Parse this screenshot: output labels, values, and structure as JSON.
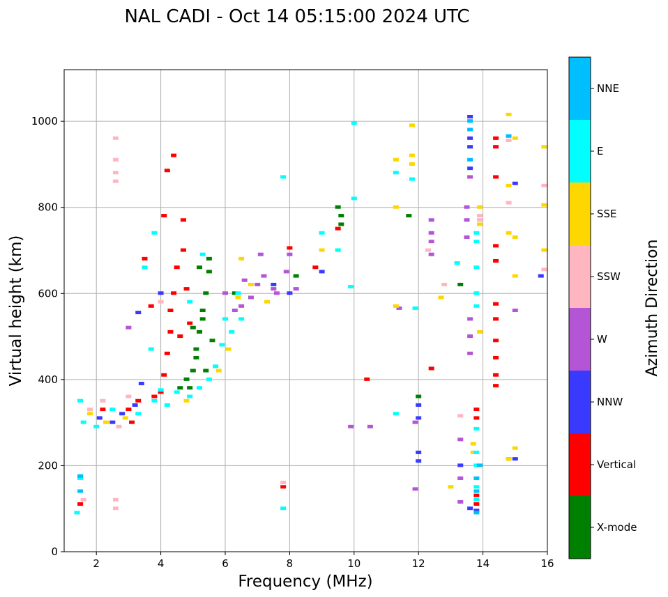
{
  "chart_data": {
    "type": "scatter",
    "title": "NAL CADI - Oct 14 05:15:00 2024 UTC",
    "xlabel": "Frequency (MHz)",
    "ylabel": "Virtual height (km)",
    "xlim": [
      1,
      16
    ],
    "ylim": [
      0,
      1120
    ],
    "xticks": [
      2,
      4,
      6,
      8,
      10,
      12,
      14,
      16
    ],
    "yticks": [
      0,
      200,
      400,
      600,
      800,
      1000
    ],
    "grid": true,
    "colorbar": {
      "label": "Azimuth Direction",
      "categories": [
        {
          "name": "X-mode",
          "color": "#008000"
        },
        {
          "name": "Vertical",
          "color": "#ff0000"
        },
        {
          "name": "NNW",
          "color": "#3a3aff"
        },
        {
          "name": "W",
          "color": "#b455d6"
        },
        {
          "name": "SSW",
          "color": "#ffb6c1"
        },
        {
          "name": "SSE",
          "color": "#ffd700"
        },
        {
          "name": "E",
          "color": "#00ffff"
        },
        {
          "name": "NNE",
          "color": "#00bfff"
        }
      ]
    },
    "series": [
      {
        "name": "X-mode",
        "points": [
          [
            4.9,
            380
          ],
          [
            5.0,
            420
          ],
          [
            5.1,
            470
          ],
          [
            5.2,
            510
          ],
          [
            5.3,
            560
          ],
          [
            5.4,
            600
          ],
          [
            5.2,
            660
          ],
          [
            5.5,
            650
          ],
          [
            5.3,
            540
          ],
          [
            5.1,
            450
          ],
          [
            4.8,
            400
          ],
          [
            5.6,
            490
          ],
          [
            5.4,
            420
          ],
          [
            9.6,
            780
          ],
          [
            9.6,
            760
          ],
          [
            9.5,
            800
          ],
          [
            8.2,
            640
          ],
          [
            12.0,
            360
          ],
          [
            13.3,
            620
          ],
          [
            14.8,
            215
          ],
          [
            11.7,
            780
          ],
          [
            6.3,
            600
          ],
          [
            5.5,
            680
          ],
          [
            5.0,
            520
          ],
          [
            4.6,
            380
          ]
        ]
      },
      {
        "name": "Vertical",
        "points": [
          [
            4.0,
            370
          ],
          [
            4.1,
            410
          ],
          [
            4.2,
            460
          ],
          [
            4.3,
            510
          ],
          [
            4.3,
            560
          ],
          [
            4.4,
            600
          ],
          [
            4.5,
            660
          ],
          [
            4.7,
            700
          ],
          [
            4.7,
            770
          ],
          [
            4.1,
            780
          ],
          [
            4.2,
            885
          ],
          [
            4.4,
            920
          ],
          [
            3.7,
            570
          ],
          [
            3.5,
            680
          ],
          [
            3.1,
            300
          ],
          [
            3.3,
            350
          ],
          [
            3.8,
            360
          ],
          [
            3.0,
            330
          ],
          [
            2.2,
            330
          ],
          [
            4.6,
            500
          ],
          [
            4.8,
            610
          ],
          [
            4.9,
            530
          ],
          [
            10.4,
            400
          ],
          [
            12.4,
            425
          ],
          [
            14.4,
            960
          ],
          [
            14.4,
            940
          ],
          [
            14.4,
            870
          ],
          [
            14.4,
            710
          ],
          [
            14.4,
            675
          ],
          [
            14.4,
            575
          ],
          [
            14.4,
            540
          ],
          [
            14.4,
            490
          ],
          [
            14.4,
            450
          ],
          [
            14.4,
            410
          ],
          [
            14.4,
            385
          ],
          [
            13.8,
            310
          ],
          [
            13.8,
            330
          ],
          [
            13.8,
            110
          ],
          [
            13.8,
            130
          ],
          [
            1.5,
            110
          ],
          [
            7.8,
            150
          ],
          [
            9.5,
            750
          ],
          [
            8.8,
            660
          ],
          [
            8.0,
            705
          ]
        ]
      },
      {
        "name": "NNW",
        "points": [
          [
            2.5,
            300
          ],
          [
            2.8,
            320
          ],
          [
            3.2,
            340
          ],
          [
            3.4,
            390
          ],
          [
            4.0,
            600
          ],
          [
            3.3,
            555
          ],
          [
            12.0,
            340
          ],
          [
            12.0,
            310
          ],
          [
            12.0,
            230
          ],
          [
            12.0,
            210
          ],
          [
            13.6,
            1010
          ],
          [
            13.6,
            960
          ],
          [
            13.6,
            940
          ],
          [
            13.6,
            890
          ],
          [
            13.3,
            200
          ],
          [
            13.6,
            100
          ],
          [
            13.8,
            95
          ],
          [
            15.0,
            855
          ],
          [
            15.8,
            640
          ],
          [
            15.0,
            215
          ],
          [
            2.1,
            310
          ],
          [
            7.5,
            620
          ],
          [
            8.0,
            600
          ],
          [
            9.0,
            650
          ]
        ]
      },
      {
        "name": "W",
        "points": [
          [
            6.5,
            570
          ],
          [
            6.8,
            590
          ],
          [
            7.0,
            620
          ],
          [
            7.2,
            640
          ],
          [
            7.5,
            610
          ],
          [
            7.6,
            600
          ],
          [
            7.9,
            650
          ],
          [
            8.0,
            690
          ],
          [
            8.2,
            610
          ],
          [
            6.3,
            560
          ],
          [
            6.0,
            600
          ],
          [
            7.1,
            690
          ],
          [
            6.6,
            630
          ],
          [
            12.4,
            770
          ],
          [
            12.4,
            740
          ],
          [
            12.4,
            720
          ],
          [
            12.4,
            690
          ],
          [
            13.5,
            800
          ],
          [
            13.5,
            770
          ],
          [
            13.5,
            730
          ],
          [
            13.6,
            870
          ],
          [
            13.6,
            540
          ],
          [
            13.6,
            500
          ],
          [
            13.6,
            460
          ],
          [
            13.3,
            260
          ],
          [
            13.3,
            170
          ],
          [
            13.3,
            115
          ],
          [
            15.0,
            560
          ],
          [
            11.9,
            300
          ],
          [
            11.9,
            145
          ],
          [
            9.9,
            290
          ],
          [
            10.5,
            290
          ],
          [
            11.4,
            565
          ],
          [
            3.0,
            520
          ]
        ]
      },
      {
        "name": "SSW",
        "points": [
          [
            2.6,
            960
          ],
          [
            2.6,
            910
          ],
          [
            2.6,
            880
          ],
          [
            2.6,
            860
          ],
          [
            2.6,
            120
          ],
          [
            2.6,
            100
          ],
          [
            1.8,
            330
          ],
          [
            2.2,
            350
          ],
          [
            2.7,
            290
          ],
          [
            3.0,
            360
          ],
          [
            4.0,
            580
          ],
          [
            13.9,
            780
          ],
          [
            13.9,
            770
          ],
          [
            14.8,
            955
          ],
          [
            14.8,
            810
          ],
          [
            15.9,
            850
          ],
          [
            15.9,
            655
          ],
          [
            13.3,
            315
          ],
          [
            7.8,
            160
          ],
          [
            12.8,
            620
          ],
          [
            12.3,
            700
          ],
          [
            1.6,
            120
          ]
        ]
      },
      {
        "name": "SSE",
        "points": [
          [
            1.8,
            320
          ],
          [
            2.3,
            300
          ],
          [
            2.9,
            310
          ],
          [
            4.8,
            350
          ],
          [
            5.8,
            420
          ],
          [
            6.1,
            470
          ],
          [
            6.4,
            590
          ],
          [
            6.8,
            620
          ],
          [
            7.3,
            580
          ],
          [
            13.9,
            800
          ],
          [
            13.9,
            760
          ],
          [
            14.8,
            1015
          ],
          [
            14.8,
            850
          ],
          [
            14.8,
            740
          ],
          [
            15.0,
            730
          ],
          [
            15.0,
            640
          ],
          [
            15.0,
            960
          ],
          [
            15.9,
            940
          ],
          [
            15.9,
            805
          ],
          [
            15.9,
            700
          ],
          [
            15.0,
            240
          ],
          [
            11.8,
            990
          ],
          [
            11.8,
            920
          ],
          [
            11.8,
            900
          ],
          [
            11.3,
            910
          ],
          [
            11.3,
            570
          ],
          [
            12.7,
            590
          ],
          [
            13.0,
            150
          ],
          [
            13.9,
            510
          ],
          [
            13.7,
            250
          ],
          [
            13.7,
            230
          ],
          [
            14.8,
            215
          ],
          [
            9.0,
            700
          ],
          [
            6.5,
            680
          ],
          [
            11.3,
            800
          ]
        ]
      },
      {
        "name": "E",
        "points": [
          [
            1.5,
            350
          ],
          [
            1.6,
            300
          ],
          [
            2.0,
            290
          ],
          [
            2.5,
            330
          ],
          [
            3.3,
            320
          ],
          [
            3.8,
            350
          ],
          [
            4.2,
            340
          ],
          [
            4.5,
            370
          ],
          [
            4.9,
            360
          ],
          [
            5.2,
            380
          ],
          [
            5.5,
            400
          ],
          [
            5.7,
            430
          ],
          [
            5.9,
            480
          ],
          [
            6.0,
            540
          ],
          [
            6.2,
            510
          ],
          [
            6.5,
            540
          ],
          [
            6.4,
            600
          ],
          [
            3.8,
            740
          ],
          [
            3.5,
            660
          ],
          [
            3.7,
            470
          ],
          [
            4.9,
            580
          ],
          [
            5.3,
            690
          ],
          [
            9.0,
            740
          ],
          [
            9.5,
            700
          ],
          [
            9.9,
            615
          ],
          [
            10.0,
            995
          ],
          [
            11.3,
            880
          ],
          [
            11.8,
            865
          ],
          [
            11.9,
            565
          ],
          [
            11.3,
            320
          ],
          [
            13.2,
            670
          ],
          [
            13.8,
            740
          ],
          [
            13.8,
            720
          ],
          [
            13.8,
            660
          ],
          [
            13.8,
            600
          ],
          [
            13.8,
            570
          ],
          [
            13.8,
            285
          ],
          [
            13.8,
            230
          ],
          [
            13.8,
            200
          ],
          [
            13.8,
            150
          ],
          [
            13.8,
            120
          ],
          [
            7.8,
            870
          ],
          [
            7.8,
            100
          ],
          [
            1.4,
            90
          ],
          [
            1.5,
            170
          ],
          [
            10.0,
            820
          ],
          [
            4.0,
            375
          ]
        ]
      },
      {
        "name": "NNE",
        "points": [
          [
            1.5,
            175
          ],
          [
            1.5,
            140
          ],
          [
            13.6,
            1000
          ],
          [
            13.6,
            980
          ],
          [
            13.6,
            910
          ],
          [
            13.8,
            170
          ],
          [
            13.8,
            140
          ],
          [
            13.8,
            90
          ],
          [
            14.8,
            965
          ],
          [
            13.9,
            200
          ]
        ]
      }
    ]
  }
}
